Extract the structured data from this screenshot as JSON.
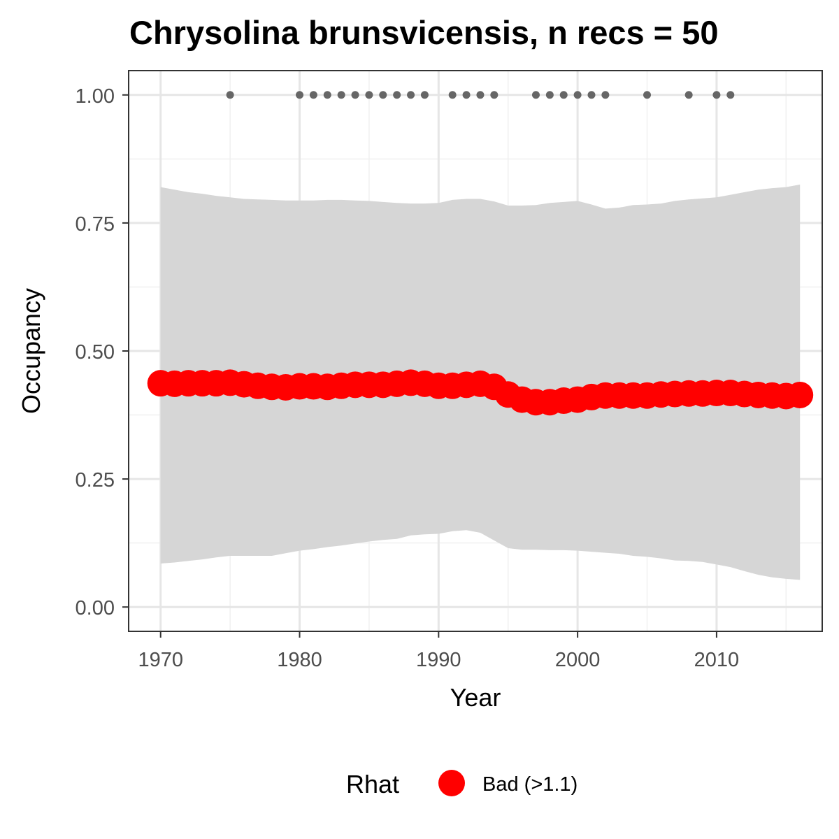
{
  "chart_data": {
    "type": "line",
    "title": "Chrysolina brunsvicensis, n recs = 50",
    "xlabel": "Year",
    "ylabel": "Occupancy",
    "xlim": [
      1967.7,
      2017.6
    ],
    "ylim": [
      -0.0475,
      1.0475
    ],
    "x_ticks": [
      1970,
      1980,
      1990,
      2000,
      2010
    ],
    "x_tick_labels": [
      "1970",
      "1980",
      "1990",
      "2000",
      "2010"
    ],
    "y_ticks": [
      0,
      0.25,
      0.5,
      0.75,
      1
    ],
    "y_tick_labels": [
      "0.00",
      "0.25",
      "0.50",
      "0.75",
      "1.00"
    ],
    "grid": true,
    "series": [
      {
        "name": "Bad (>1.1)",
        "kind": "line_points",
        "color": "#ff0000",
        "x": [
          1970,
          1971,
          1972,
          1973,
          1974,
          1975,
          1976,
          1977,
          1978,
          1979,
          1980,
          1981,
          1982,
          1983,
          1984,
          1985,
          1986,
          1987,
          1988,
          1989,
          1990,
          1991,
          1992,
          1993,
          1994,
          1995,
          1996,
          1997,
          1998,
          1999,
          2000,
          2001,
          2002,
          2003,
          2004,
          2005,
          2006,
          2007,
          2008,
          2009,
          2010,
          2011,
          2012,
          2013,
          2014,
          2015,
          2016
        ],
        "y": [
          0.437,
          0.436,
          0.437,
          0.437,
          0.437,
          0.438,
          0.435,
          0.432,
          0.43,
          0.429,
          0.431,
          0.431,
          0.43,
          0.432,
          0.434,
          0.434,
          0.434,
          0.436,
          0.438,
          0.436,
          0.432,
          0.432,
          0.434,
          0.436,
          0.43,
          0.415,
          0.405,
          0.4,
          0.4,
          0.403,
          0.405,
          0.41,
          0.413,
          0.413,
          0.413,
          0.413,
          0.415,
          0.416,
          0.417,
          0.417,
          0.418,
          0.418,
          0.416,
          0.414,
          0.413,
          0.412,
          0.414
        ]
      },
      {
        "name": "",
        "kind": "ribbon",
        "color": "#d6d6d6",
        "x": [
          1970,
          1971,
          1972,
          1973,
          1974,
          1975,
          1976,
          1977,
          1978,
          1979,
          1980,
          1981,
          1982,
          1983,
          1984,
          1985,
          1986,
          1987,
          1988,
          1989,
          1990,
          1991,
          1992,
          1993,
          1994,
          1995,
          1996,
          1997,
          1998,
          1999,
          2000,
          2001,
          2002,
          2003,
          2004,
          2005,
          2006,
          2007,
          2008,
          2009,
          2010,
          2011,
          2012,
          2013,
          2014,
          2015,
          2016
        ],
        "lower": [
          0.085,
          0.087,
          0.09,
          0.093,
          0.097,
          0.1,
          0.1,
          0.1,
          0.1,
          0.105,
          0.11,
          0.113,
          0.117,
          0.12,
          0.124,
          0.128,
          0.131,
          0.133,
          0.14,
          0.142,
          0.143,
          0.148,
          0.15,
          0.145,
          0.13,
          0.115,
          0.112,
          0.112,
          0.111,
          0.111,
          0.11,
          0.108,
          0.106,
          0.104,
          0.1,
          0.098,
          0.095,
          0.091,
          0.09,
          0.088,
          0.083,
          0.078,
          0.07,
          0.063,
          0.058,
          0.055,
          0.053
        ],
        "upper": [
          0.82,
          0.815,
          0.81,
          0.807,
          0.803,
          0.8,
          0.797,
          0.796,
          0.795,
          0.794,
          0.794,
          0.794,
          0.795,
          0.795,
          0.794,
          0.793,
          0.791,
          0.789,
          0.788,
          0.788,
          0.789,
          0.795,
          0.797,
          0.797,
          0.792,
          0.784,
          0.784,
          0.785,
          0.789,
          0.791,
          0.793,
          0.786,
          0.778,
          0.78,
          0.785,
          0.786,
          0.788,
          0.793,
          0.796,
          0.798,
          0.8,
          0.805,
          0.81,
          0.815,
          0.818,
          0.82,
          0.825
        ]
      },
      {
        "name": "",
        "kind": "points",
        "color": "#666666",
        "x": [
          1975,
          1980,
          1981,
          1982,
          1983,
          1984,
          1985,
          1986,
          1987,
          1988,
          1989,
          1991,
          1992,
          1993,
          1994,
          1997,
          1998,
          1999,
          2000,
          2001,
          2002,
          2005,
          2008,
          2010,
          2011
        ],
        "y": [
          1,
          1,
          1,
          1,
          1,
          1,
          1,
          1,
          1,
          1,
          1,
          1,
          1,
          1,
          1,
          1,
          1,
          1,
          1,
          1,
          1,
          1,
          1,
          1,
          1
        ]
      }
    ],
    "legend": {
      "title": "Rhat",
      "position": "bottom",
      "entries": [
        {
          "label": "Bad (>1.1)",
          "color": "#ff0000",
          "marker": "circle"
        }
      ]
    }
  }
}
